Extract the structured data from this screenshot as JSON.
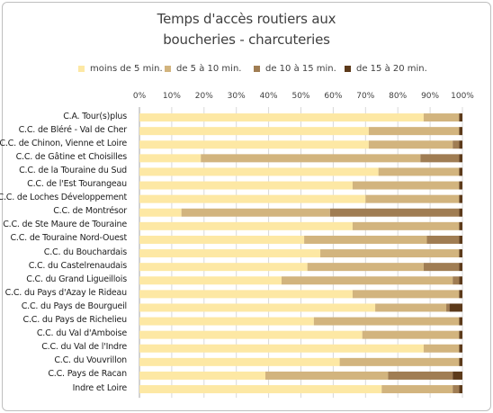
{
  "chart_data": {
    "type": "bar",
    "orientation": "horizontal",
    "stacked": "percent",
    "title_lines": [
      "Temps d'accès routiers aux",
      "boucheries - charcuteries"
    ],
    "legend_position": "top",
    "xlim": [
      0,
      100
    ],
    "x_ticks": [
      "0%",
      "10%",
      "20%",
      "30%",
      "40%",
      "50%",
      "60%",
      "70%",
      "80%",
      "90%",
      "100%"
    ],
    "grid": true,
    "categories": [
      "C.A. Tour(s)plus",
      "C.C. de Bléré - Val de Cher",
      "C.C. de Chinon, Vienne et Loire",
      "C.C. de Gâtine et Choisilles",
      "C.C. de la Touraine du Sud",
      "C.C. de l'Est Tourangeau",
      "C.C. de Loches Développement",
      "C.C. de Montrésor",
      "C.C. de Ste Maure de Touraine",
      "C.C. de Touraine Nord-Ouest",
      "C.C. du Bouchardais",
      "C.C. du Castelrenaudais",
      "C.C. du Grand Ligueillois",
      "C.C. du Pays d'Azay le Rideau",
      "C.C. du Pays de Bourgueil",
      "C.C. du Pays de Richelieu",
      "C.C. du Val d'Amboise",
      "C.C. du Val de l'Indre",
      "C.C. du Vouvrillon",
      "C.C. Pays de Racan",
      "Indre et Loire"
    ],
    "series": [
      {
        "name": "moins de 5 min.",
        "color": "#FDE8A4",
        "values": [
          88,
          71,
          71,
          19,
          74,
          66,
          70,
          13,
          66,
          51,
          56,
          52,
          44,
          66,
          73,
          54,
          69,
          88,
          62,
          39,
          75
        ]
      },
      {
        "name": "de 5 à 10 min.",
        "color": "#D2B47E",
        "values": [
          11,
          28,
          26,
          68,
          25,
          33,
          29,
          46,
          33,
          38,
          43,
          36,
          53,
          33,
          22,
          45,
          30,
          11,
          37,
          38,
          22
        ]
      },
      {
        "name": "de 10 à 15 min.",
        "color": "#A07D53",
        "values": [
          0,
          0,
          2,
          12,
          0,
          0,
          0,
          40,
          0,
          10,
          0,
          11,
          2,
          0,
          1,
          0,
          0,
          0,
          0,
          20,
          2
        ]
      },
      {
        "name": "de 15 à 20 min.",
        "color": "#5C3A1A",
        "values": [
          1,
          1,
          1,
          1,
          1,
          1,
          1,
          1,
          1,
          1,
          1,
          1,
          1,
          1,
          4,
          1,
          1,
          1,
          1,
          3,
          1
        ]
      }
    ]
  }
}
